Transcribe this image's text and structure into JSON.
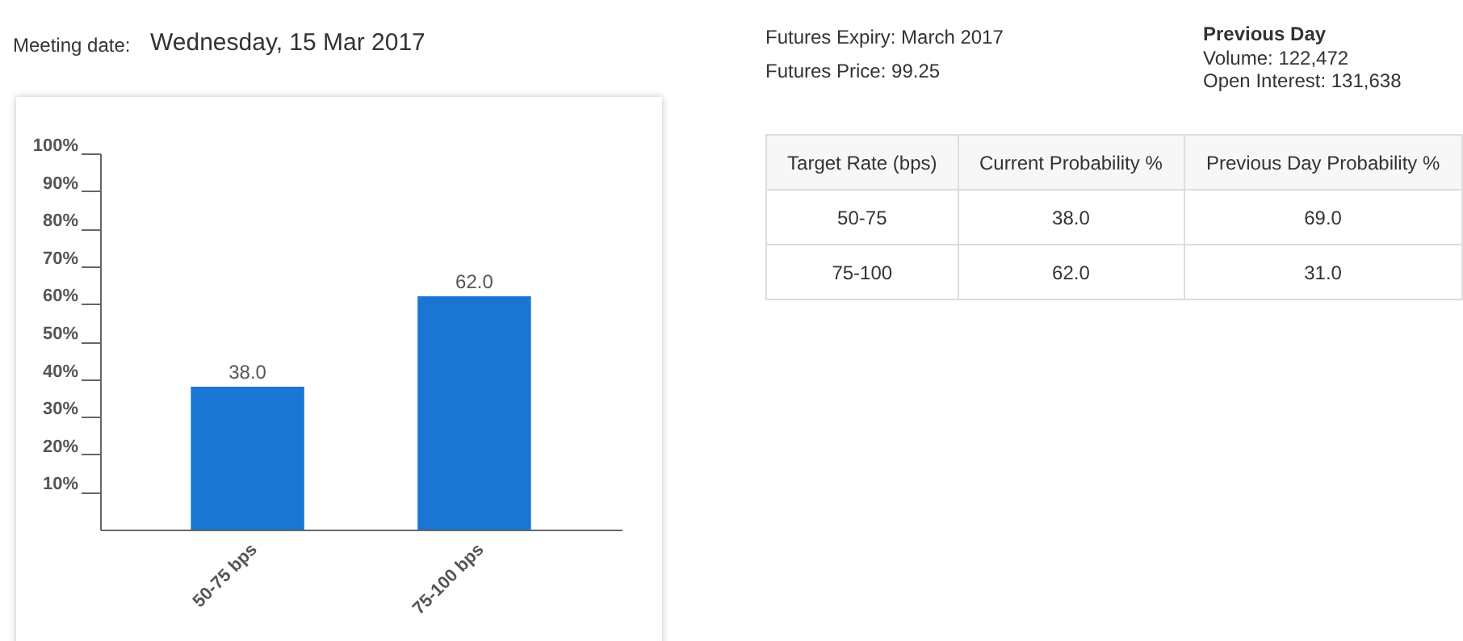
{
  "chart_data": {
    "type": "bar",
    "categories": [
      "50-75 bps",
      "75-100 bps"
    ],
    "values": [
      38.0,
      62.0
    ],
    "value_labels": [
      "38.0",
      "62.0"
    ],
    "color": "#1976d2",
    "ylim": [
      0,
      100
    ],
    "yticks": [
      {
        "value": 10,
        "label": "10%"
      },
      {
        "value": 20,
        "label": "20%"
      },
      {
        "value": 30,
        "label": "30%"
      },
      {
        "value": 40,
        "label": "40%"
      },
      {
        "value": 50,
        "label": "50%"
      },
      {
        "value": 60,
        "label": "60%"
      },
      {
        "value": 70,
        "label": "70%"
      },
      {
        "value": 80,
        "label": "80%"
      },
      {
        "value": 90,
        "label": "90%"
      },
      {
        "value": 100,
        "label": "100%"
      }
    ],
    "grid": false,
    "annotations": [
      "Meeting date:",
      "Wednesday, 15 Mar 2017",
      "Futures Expiry: March 2017",
      "Futures Price: 99.25",
      "Previous Day",
      "Volume: 122,472",
      "Open Interest: 131,638",
      "Target Rate (bps)",
      "Current Probability %",
      "Previous Day Probability %",
      "50-75",
      "38.0",
      "69.0",
      "75-100",
      "62.0",
      "31.0"
    ]
  }
}
